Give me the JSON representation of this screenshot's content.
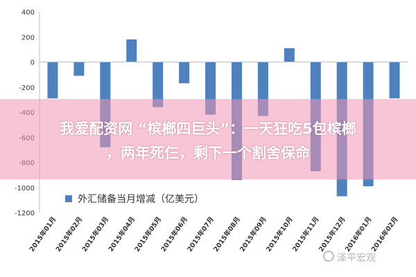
{
  "chart_data": {
    "type": "bar",
    "categories": [
      "2015年01月",
      "2015年02月",
      "2015年03月",
      "2015年04月",
      "2015年05月",
      "2015年06月",
      "2015年07月",
      "2015年08月",
      "2015年09月",
      "2015年10月",
      "2015年11月",
      "2015年12月",
      "2016年01月",
      "2016年02月"
    ],
    "values": [
      -290,
      -110,
      -680,
      180,
      -360,
      -170,
      -420,
      -940,
      -430,
      110,
      -870,
      -1070,
      -990,
      -290
    ],
    "legend": "外汇储备当月增减（亿美元）",
    "ylim": [
      -1200,
      400
    ],
    "yticks": [
      400,
      200,
      0,
      -200,
      -400,
      -600,
      -800,
      -1000,
      -1200
    ],
    "bar_color": "#4f81bd",
    "grid": false,
    "legend_position": "bottom-left"
  },
  "banner": {
    "line1": "我爱配资网 “槟榔四巨头”：一天狂吃5包槟榔",
    "line2": "，两年死仨，剩下一个割舍保命",
    "color": "#f096b4"
  },
  "watermark": {
    "text": "泽平宏观",
    "icon": "wechat-icon"
  }
}
